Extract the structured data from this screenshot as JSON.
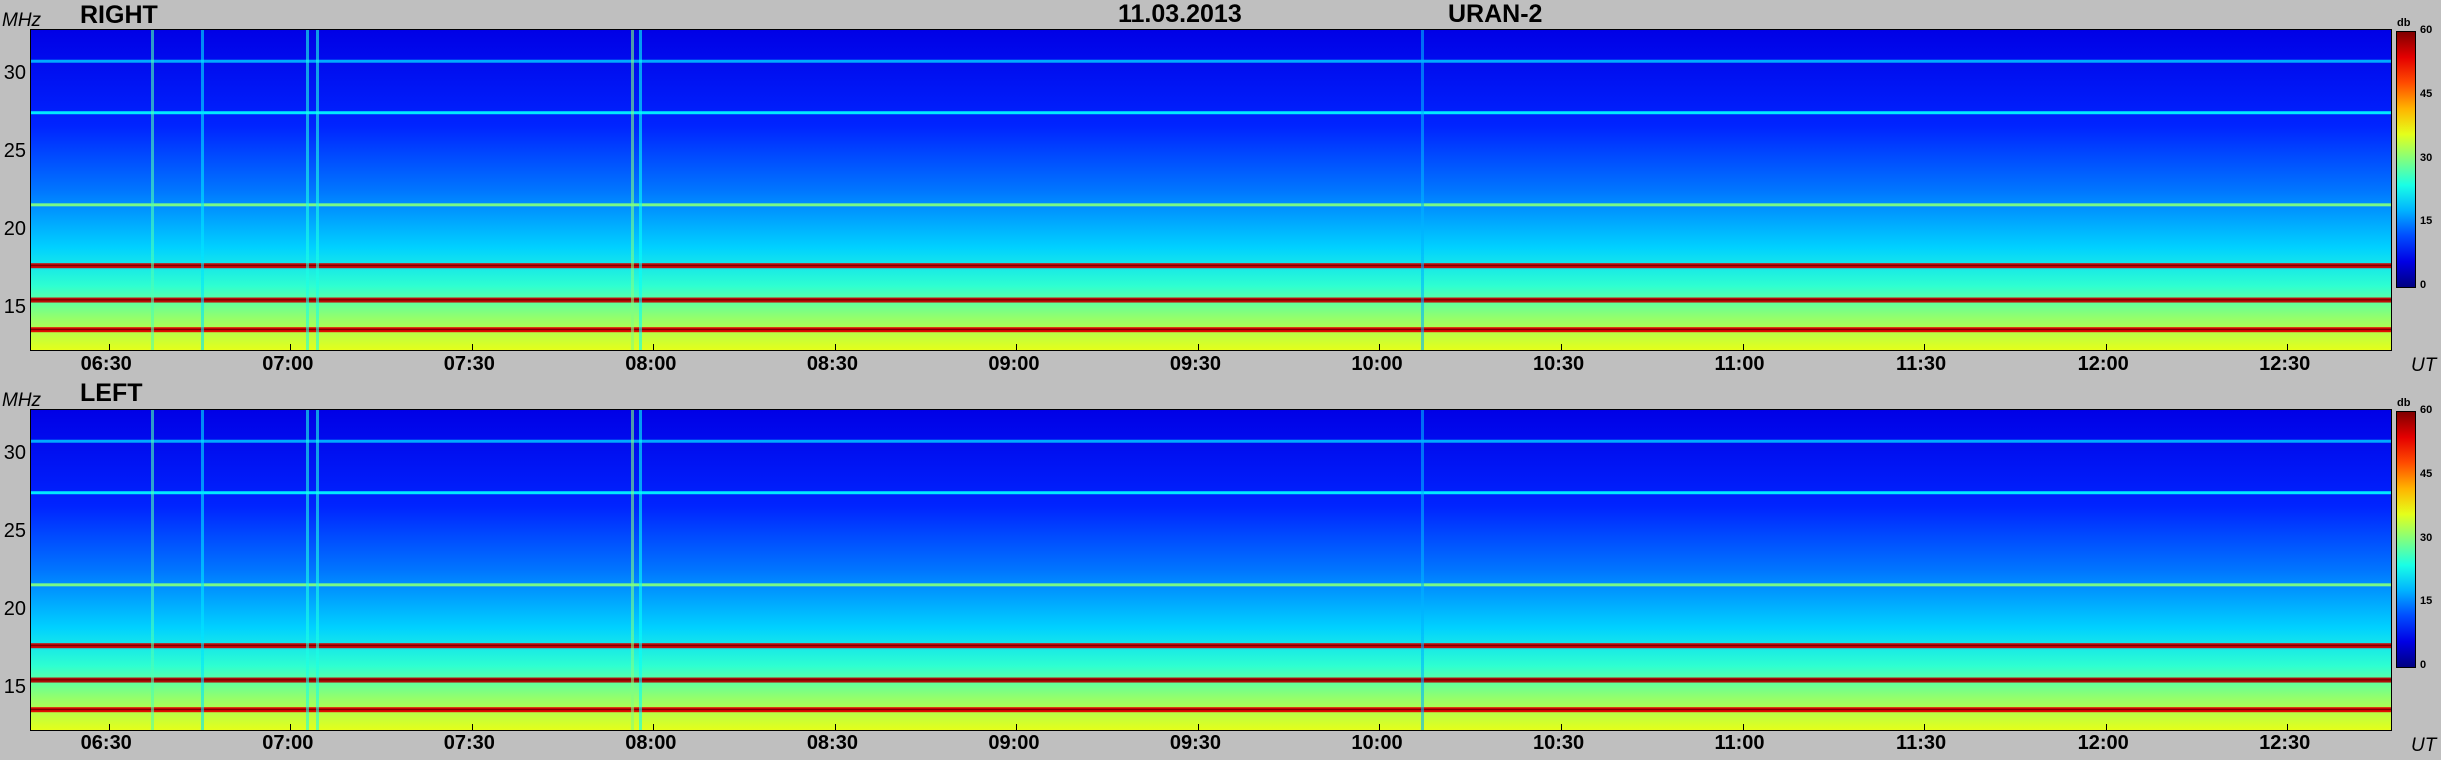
{
  "header": {
    "date": "11.03.2013",
    "instrument": "URAN-2"
  },
  "axis": {
    "y_unit": "MHz",
    "x_unit": "UT",
    "colorbar_unit": "db"
  },
  "chart_data": [
    {
      "type": "heatmap",
      "title": "RIGHT",
      "xlabel": "UT",
      "ylabel": "MHz",
      "x_ticks": [
        "06:30",
        "07:00",
        "07:30",
        "08:00",
        "08:30",
        "09:00",
        "09:30",
        "10:00",
        "10:30",
        "11:00",
        "11:30",
        "12:00",
        "12:30"
      ],
      "xlim": [
        "06:17",
        "12:47"
      ],
      "y_ticks": [
        15,
        20,
        25,
        30
      ],
      "ylim": [
        12.3,
        32.8
      ],
      "colorbar": {
        "label": "db",
        "ticks": [
          0,
          15,
          30,
          45,
          60
        ],
        "range": [
          0,
          60
        ]
      },
      "bands": [
        {
          "freq": 13.6,
          "db": 54
        },
        {
          "freq": 15.5,
          "db": 56
        },
        {
          "freq": 17.7,
          "db": 55
        },
        {
          "freq": 21.6,
          "db": 30
        },
        {
          "freq": 27.5,
          "db": 22
        },
        {
          "freq": 30.8,
          "db": 18
        }
      ]
    },
    {
      "type": "heatmap",
      "title": "LEFT",
      "xlabel": "UT",
      "ylabel": "MHz",
      "x_ticks": [
        "06:30",
        "07:00",
        "07:30",
        "08:00",
        "08:30",
        "09:00",
        "09:30",
        "10:00",
        "10:30",
        "11:00",
        "11:30",
        "12:00",
        "12:30"
      ],
      "xlim": [
        "06:17",
        "12:47"
      ],
      "y_ticks": [
        15,
        20,
        25,
        30
      ],
      "ylim": [
        12.3,
        32.8
      ],
      "colorbar": {
        "label": "db",
        "ticks": [
          0,
          15,
          30,
          45,
          60
        ],
        "range": [
          0,
          60
        ]
      },
      "bands": [
        {
          "freq": 13.6,
          "db": 54
        },
        {
          "freq": 15.5,
          "db": 57
        },
        {
          "freq": 17.7,
          "db": 55
        },
        {
          "freq": 21.6,
          "db": 30
        },
        {
          "freq": 27.5,
          "db": 22
        },
        {
          "freq": 30.8,
          "db": 18
        }
      ]
    }
  ]
}
